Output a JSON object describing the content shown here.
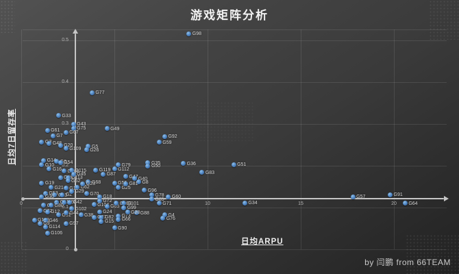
{
  "page": {
    "title": "游戏矩阵分析",
    "credit": "by 闫鹏 from 66TEAM"
  },
  "chart_data": {
    "type": "scatter",
    "title": "游戏矩阵分析",
    "xlabel": "日均ARPU",
    "ylabel": "日均7日留存率",
    "xlim": [
      0,
      23
    ],
    "ylim": [
      0,
      0.525
    ],
    "grid": true,
    "legend": false,
    "x_gridlines": [
      0,
      5,
      10,
      15,
      20
    ],
    "y_gridlines": [
      0,
      0.1,
      0.2,
      0.3,
      0.4,
      0.5
    ],
    "x_ticks": [
      {
        "value": 0,
        "label": "0"
      },
      {
        "value": 10,
        "label": "10"
      },
      {
        "value": 15,
        "label": "15"
      },
      {
        "value": 20,
        "label": "20"
      }
    ],
    "y_ticks": [
      {
        "value": 0,
        "label": "0"
      },
      {
        "value": 0.1,
        "label": "0.1"
      },
      {
        "value": 0.2,
        "label": "0.2"
      },
      {
        "value": 0.3,
        "label": "0.3"
      },
      {
        "value": 0.4,
        "label": "0.4"
      },
      {
        "value": 0.5,
        "label": "0.5"
      }
    ],
    "quadrant_center": {
      "x": 2.9,
      "y": 0.121
    },
    "point_color": "#4a7fbd",
    "series": [
      {
        "name": "games",
        "points": [
          {
            "label": "G98",
            "x": 9.0,
            "y": 0.516
          },
          {
            "label": "G77",
            "x": 3.8,
            "y": 0.375
          },
          {
            "label": "G33",
            "x": 2.0,
            "y": 0.32
          },
          {
            "label": "G43",
            "x": 2.8,
            "y": 0.3
          },
          {
            "label": "G75",
            "x": 2.8,
            "y": 0.29
          },
          {
            "label": "G61",
            "x": 1.4,
            "y": 0.285
          },
          {
            "label": "G67",
            "x": 2.4,
            "y": 0.28
          },
          {
            "label": "G49",
            "x": 4.6,
            "y": 0.289
          },
          {
            "label": "G7",
            "x": 1.7,
            "y": 0.272
          },
          {
            "label": "G3",
            "x": 1.1,
            "y": 0.257
          },
          {
            "label": "G48",
            "x": 1.5,
            "y": 0.254
          },
          {
            "label": "G20",
            "x": 2.1,
            "y": 0.249
          },
          {
            "label": "G109",
            "x": 2.4,
            "y": 0.241
          },
          {
            "label": "G5",
            "x": 3.6,
            "y": 0.246
          },
          {
            "label": "G26",
            "x": 3.5,
            "y": 0.238
          },
          {
            "label": "G92",
            "x": 7.7,
            "y": 0.27
          },
          {
            "label": "G59",
            "x": 7.4,
            "y": 0.256
          },
          {
            "label": "G14",
            "x": 1.2,
            "y": 0.213
          },
          {
            "label": "G10",
            "x": 1.1,
            "y": 0.202
          },
          {
            "label": "G6",
            "x": 1.9,
            "y": 0.21
          },
          {
            "label": "G54",
            "x": 2.1,
            "y": 0.208
          },
          {
            "label": "G16",
            "x": 1.5,
            "y": 0.192
          },
          {
            "label": "G108",
            "x": 2.3,
            "y": 0.187
          },
          {
            "label": "G115",
            "x": 2.7,
            "y": 0.189
          },
          {
            "label": "G119",
            "x": 4.0,
            "y": 0.19
          },
          {
            "label": "G112",
            "x": 5.0,
            "y": 0.192
          },
          {
            "label": "G87",
            "x": 4.4,
            "y": 0.18
          },
          {
            "label": "G39",
            "x": 2.1,
            "y": 0.172
          },
          {
            "label": "G113",
            "x": 2.5,
            "y": 0.172
          },
          {
            "label": "G45",
            "x": 2.8,
            "y": 0.18
          },
          {
            "label": "G79",
            "x": 5.2,
            "y": 0.202
          },
          {
            "label": "G35",
            "x": 6.8,
            "y": 0.207
          },
          {
            "label": "G50",
            "x": 6.8,
            "y": 0.2
          },
          {
            "label": "G36",
            "x": 8.7,
            "y": 0.205
          },
          {
            "label": "G51",
            "x": 11.4,
            "y": 0.203
          },
          {
            "label": "G83",
            "x": 9.7,
            "y": 0.184
          },
          {
            "label": "G52",
            "x": 2.5,
            "y": 0.164
          },
          {
            "label": "G68",
            "x": 3.6,
            "y": 0.161
          },
          {
            "label": "G55",
            "x": 5.0,
            "y": 0.159
          },
          {
            "label": "G25",
            "x": 5.2,
            "y": 0.148
          },
          {
            "label": "G19",
            "x": 1.1,
            "y": 0.159
          },
          {
            "label": "G21",
            "x": 1.6,
            "y": 0.148
          },
          {
            "label": "G17",
            "x": 2.4,
            "y": 0.146
          },
          {
            "label": "G62",
            "x": 3.0,
            "y": 0.149
          },
          {
            "label": "G23",
            "x": 3.3,
            "y": 0.157
          },
          {
            "label": "G47",
            "x": 5.6,
            "y": 0.174
          },
          {
            "label": "G40",
            "x": 6.1,
            "y": 0.169
          },
          {
            "label": "G8",
            "x": 6.3,
            "y": 0.161
          },
          {
            "label": "G81",
            "x": 5.6,
            "y": 0.157
          },
          {
            "label": "G96",
            "x": 6.6,
            "y": 0.141
          },
          {
            "label": "G53",
            "x": 1.3,
            "y": 0.134
          },
          {
            "label": "G13",
            "x": 1.8,
            "y": 0.13
          },
          {
            "label": "G2",
            "x": 2.2,
            "y": 0.131
          },
          {
            "label": "G29",
            "x": 2.7,
            "y": 0.139
          },
          {
            "label": "G70",
            "x": 3.5,
            "y": 0.133
          },
          {
            "label": "G18",
            "x": 4.2,
            "y": 0.126
          },
          {
            "label": "G30",
            "x": 1.1,
            "y": 0.126
          },
          {
            "label": "G78",
            "x": 7.0,
            "y": 0.13
          },
          {
            "label": "G85",
            "x": 7.0,
            "y": 0.12
          },
          {
            "label": "G71",
            "x": 7.4,
            "y": 0.11
          },
          {
            "label": "G60",
            "x": 7.9,
            "y": 0.126
          },
          {
            "label": "G91",
            "x": 19.8,
            "y": 0.131
          },
          {
            "label": "G57",
            "x": 17.8,
            "y": 0.126
          },
          {
            "label": "G11",
            "x": 1.9,
            "y": 0.113
          },
          {
            "label": "G58",
            "x": 2.3,
            "y": 0.113
          },
          {
            "label": "G42",
            "x": 2.6,
            "y": 0.113
          },
          {
            "label": "G72",
            "x": 4.2,
            "y": 0.116
          },
          {
            "label": "G1",
            "x": 1.2,
            "y": 0.105
          },
          {
            "label": "G80",
            "x": 1.6,
            "y": 0.105
          },
          {
            "label": "G104",
            "x": 3.9,
            "y": 0.107
          },
          {
            "label": "G65",
            "x": 4.6,
            "y": 0.103
          },
          {
            "label": "G103",
            "x": 5.1,
            "y": 0.11
          },
          {
            "label": "G101",
            "x": 5.5,
            "y": 0.11
          },
          {
            "label": "G99",
            "x": 5.5,
            "y": 0.1
          },
          {
            "label": "G34",
            "x": 12.0,
            "y": 0.111
          },
          {
            "label": "G64",
            "x": 20.6,
            "y": 0.11
          },
          {
            "label": "G102",
            "x": 2.7,
            "y": 0.097
          },
          {
            "label": "G22",
            "x": 1.0,
            "y": 0.092
          },
          {
            "label": "G12",
            "x": 1.4,
            "y": 0.09
          },
          {
            "label": "G31",
            "x": 2.0,
            "y": 0.082
          },
          {
            "label": "G44",
            "x": 2.4,
            "y": 0.087
          },
          {
            "label": "G38",
            "x": 3.2,
            "y": 0.082
          },
          {
            "label": "G24",
            "x": 4.2,
            "y": 0.09
          },
          {
            "label": "G27",
            "x": 3.9,
            "y": 0.077
          },
          {
            "label": "G82",
            "x": 4.3,
            "y": 0.077
          },
          {
            "label": "G73",
            "x": 5.2,
            "y": 0.08
          },
          {
            "label": "G66",
            "x": 5.2,
            "y": 0.072
          },
          {
            "label": "G88",
            "x": 6.2,
            "y": 0.087
          },
          {
            "label": "G28",
            "x": 5.7,
            "y": 0.089
          },
          {
            "label": "G4",
            "x": 7.7,
            "y": 0.082
          },
          {
            "label": "G76",
            "x": 7.6,
            "y": 0.074
          },
          {
            "label": "G15",
            "x": 4.3,
            "y": 0.067
          },
          {
            "label": "G118",
            "x": 0.7,
            "y": 0.07
          },
          {
            "label": "G46",
            "x": 1.3,
            "y": 0.069
          },
          {
            "label": "G9",
            "x": 1.0,
            "y": 0.062
          },
          {
            "label": "G114",
            "x": 1.3,
            "y": 0.054
          },
          {
            "label": "G97",
            "x": 2.4,
            "y": 0.062
          },
          {
            "label": "G106",
            "x": 1.4,
            "y": 0.039
          },
          {
            "label": "G90",
            "x": 5.0,
            "y": 0.051
          }
        ]
      }
    ]
  },
  "colors": {
    "background_top": "#525252",
    "background_bottom": "#222222",
    "gridline": "rgba(255,255,255,0.10)",
    "axis_line": "#c6c6c6",
    "tick_text": "#b4b4b4",
    "point_fill": "#4a7fbd",
    "label_text": "#d8d8d8",
    "title_text": "#f2f2f2"
  }
}
